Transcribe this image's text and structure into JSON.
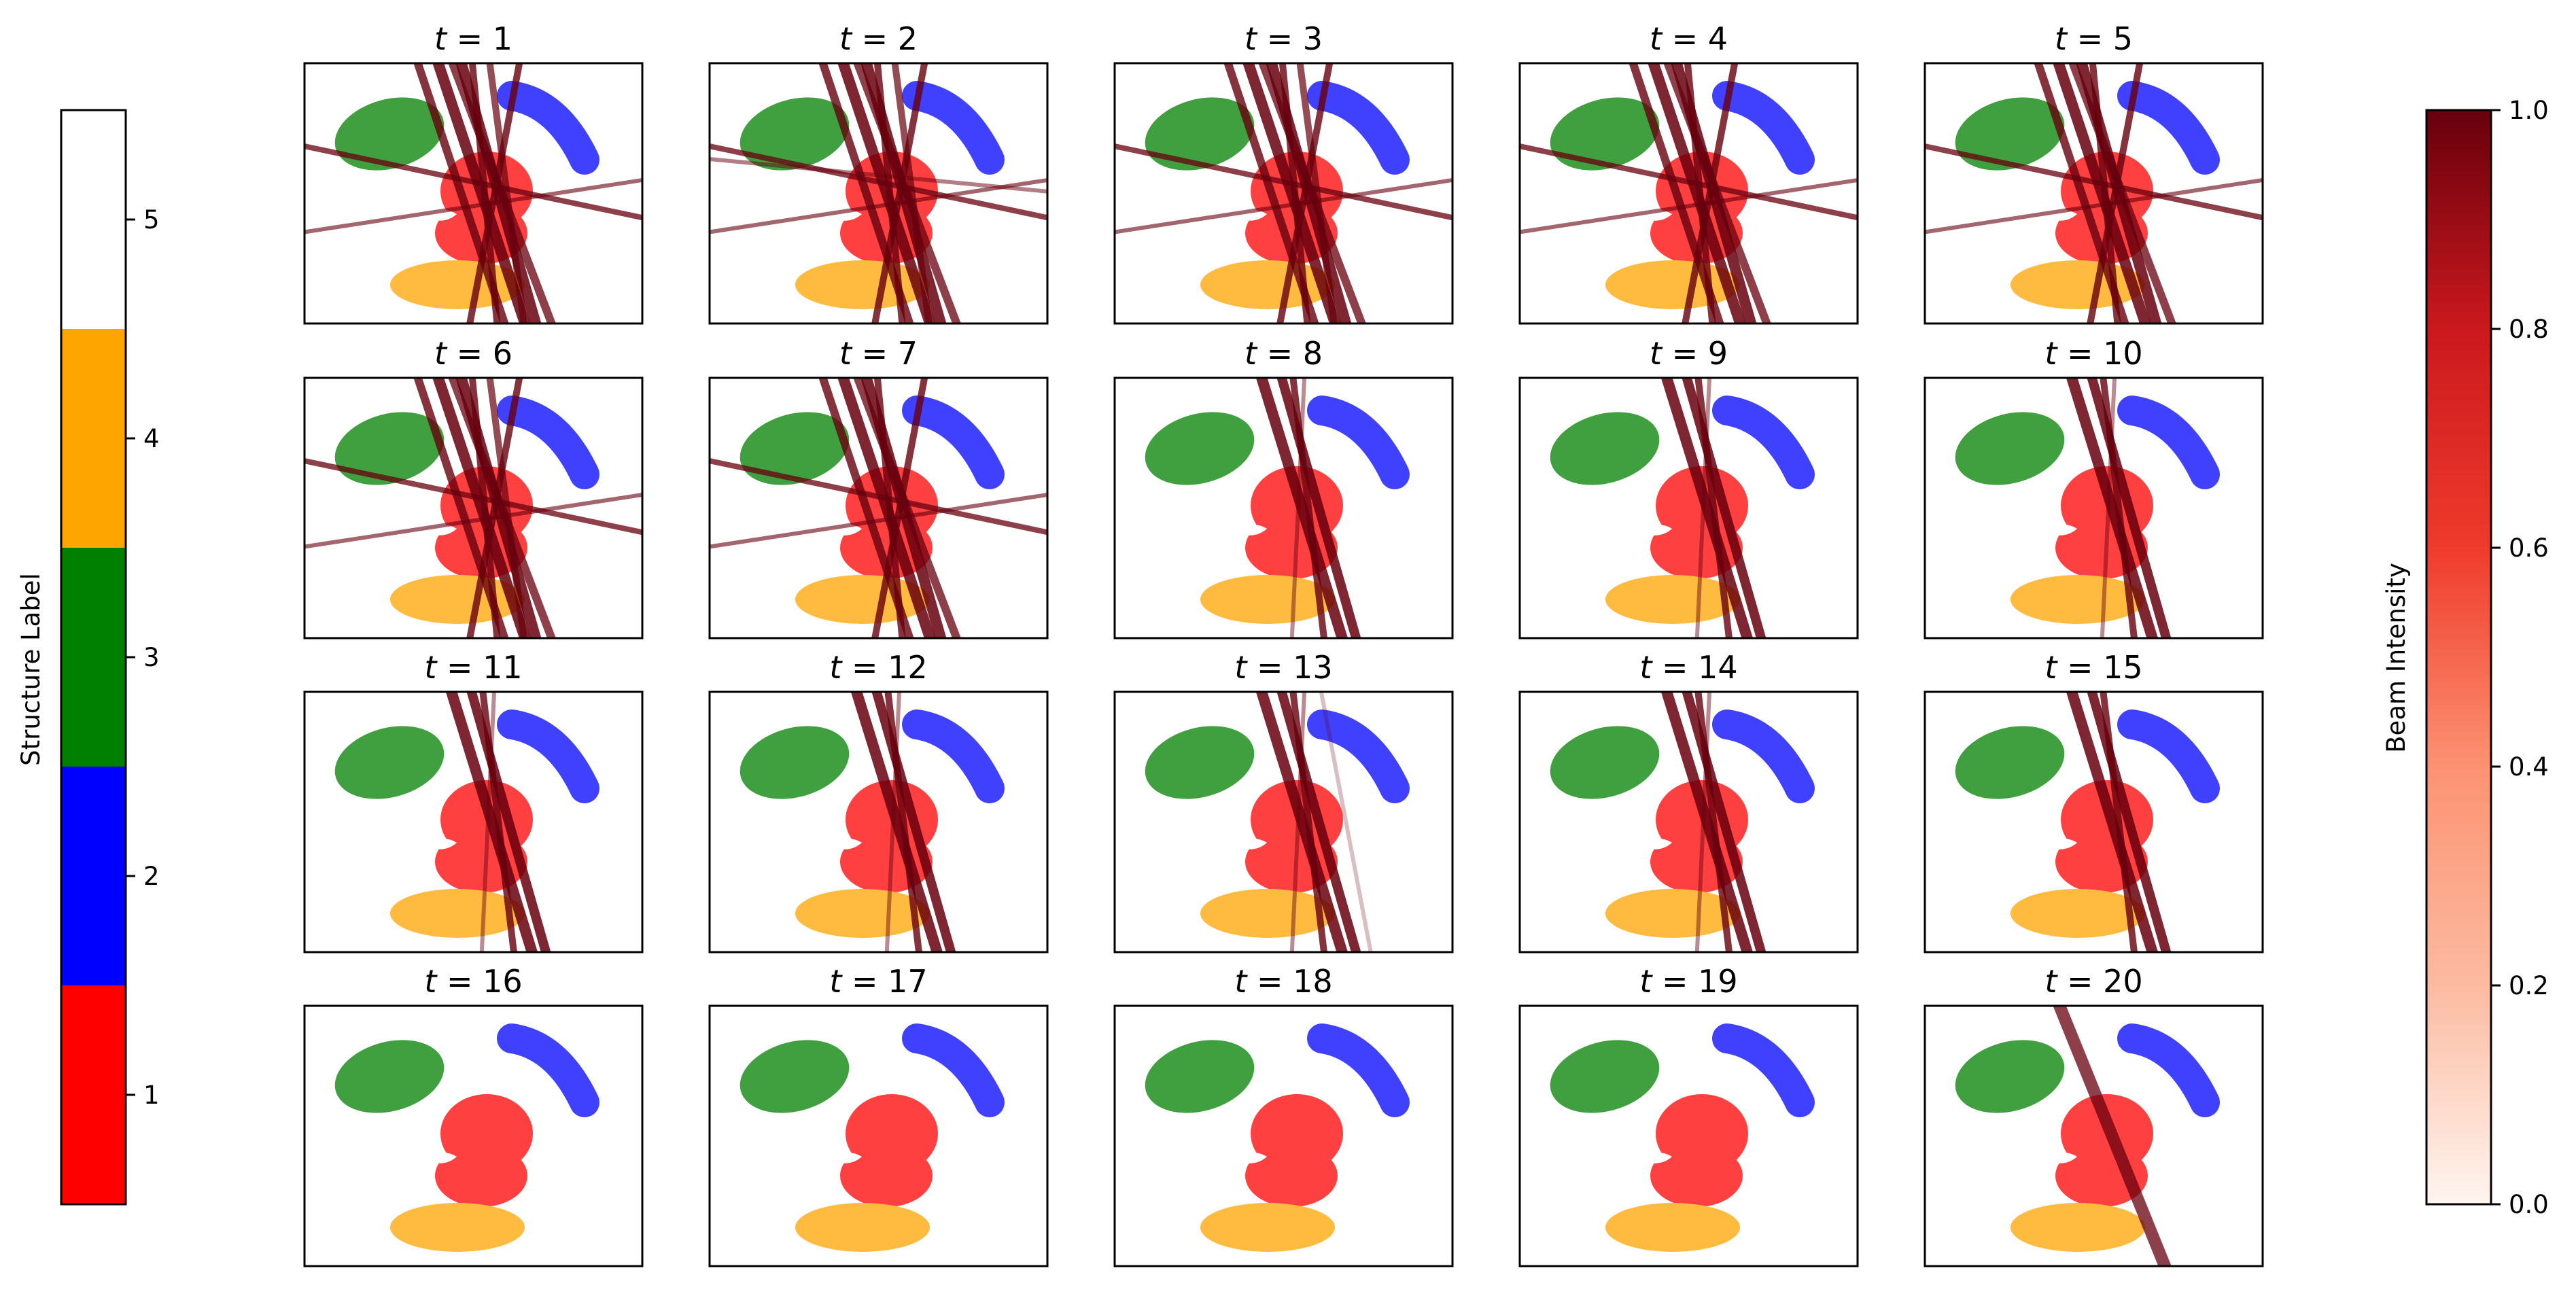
{
  "chart_data": {
    "type": "heatmap",
    "panel_title_prefix": "t = ",
    "panels": [
      {
        "t": "1",
        "beam_count": 9
      },
      {
        "t": "2",
        "beam_count": 10
      },
      {
        "t": "3",
        "beam_count": 9
      },
      {
        "t": "4",
        "beam_count": 8
      },
      {
        "t": "5",
        "beam_count": 8
      },
      {
        "t": "6",
        "beam_count": 9
      },
      {
        "t": "7",
        "beam_count": 8
      },
      {
        "t": "8",
        "beam_count": 4
      },
      {
        "t": "9",
        "beam_count": 4
      },
      {
        "t": "10",
        "beam_count": 4
      },
      {
        "t": "11",
        "beam_count": 4
      },
      {
        "t": "12",
        "beam_count": 4
      },
      {
        "t": "13",
        "beam_count": 5
      },
      {
        "t": "14",
        "beam_count": 4
      },
      {
        "t": "15",
        "beam_count": 3
      },
      {
        "t": "16",
        "beam_count": 0
      },
      {
        "t": "17",
        "beam_count": 0
      },
      {
        "t": "18",
        "beam_count": 0
      },
      {
        "t": "19",
        "beam_count": 0
      },
      {
        "t": "20",
        "beam_count": 1
      }
    ],
    "structure_colorbar": {
      "label": "Structure Label",
      "ticks": [
        "1",
        "2",
        "3",
        "4",
        "5"
      ],
      "colors": [
        "#ff0000",
        "#0000ff",
        "#008000",
        "#ffa500",
        "#ffffff"
      ]
    },
    "intensity_colorbar": {
      "label": "Beam Intensity",
      "ticks": [
        "0.0",
        "0.2",
        "0.4",
        "0.6",
        "0.8",
        "1.0"
      ],
      "range": [
        0.0,
        1.0
      ],
      "colormap": "Reds"
    },
    "structure_colors": {
      "tumor": "#ff4040",
      "organ_blue": "#4040ff",
      "organ_green": "#40a040",
      "organ_orange": "#ffbb40"
    },
    "beam_color": "#67000d"
  }
}
